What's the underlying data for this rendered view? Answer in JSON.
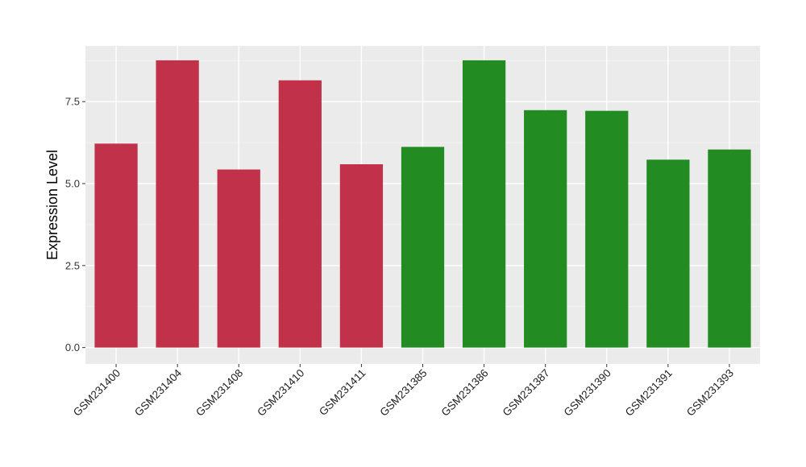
{
  "chart_data": {
    "type": "bar",
    "title": "",
    "xlabel": "",
    "ylabel": "Expression Level",
    "ylim": [
      -0.5,
      9.2
    ],
    "yticks": [
      0,
      2.5,
      5,
      7.5
    ],
    "ytick_labels": [
      "0.0",
      "2.5",
      "5.0",
      "7.5"
    ],
    "grid": true,
    "legend": "none",
    "categories": [
      "GSM231400",
      "GSM231404",
      "GSM231408",
      "GSM231410",
      "GSM231411",
      "GSM231385",
      "GSM231386",
      "GSM231387",
      "GSM231390",
      "GSM231391",
      "GSM231393"
    ],
    "values": [
      6.22,
      8.76,
      5.43,
      8.15,
      5.59,
      6.12,
      8.76,
      7.24,
      7.22,
      5.73,
      6.04
    ],
    "bar_colors": [
      "#C2314A",
      "#C2314A",
      "#C2314A",
      "#C2314A",
      "#C2314A",
      "#228B22",
      "#228B22",
      "#228B22",
      "#228B22",
      "#228B22",
      "#228B22"
    ]
  },
  "colors": {
    "panel_background": "#EBEBEB",
    "grid_major": "#FFFFFF",
    "grid_minor": "#F5F5F5",
    "group_a": "#C2314A",
    "group_b": "#228B22"
  }
}
